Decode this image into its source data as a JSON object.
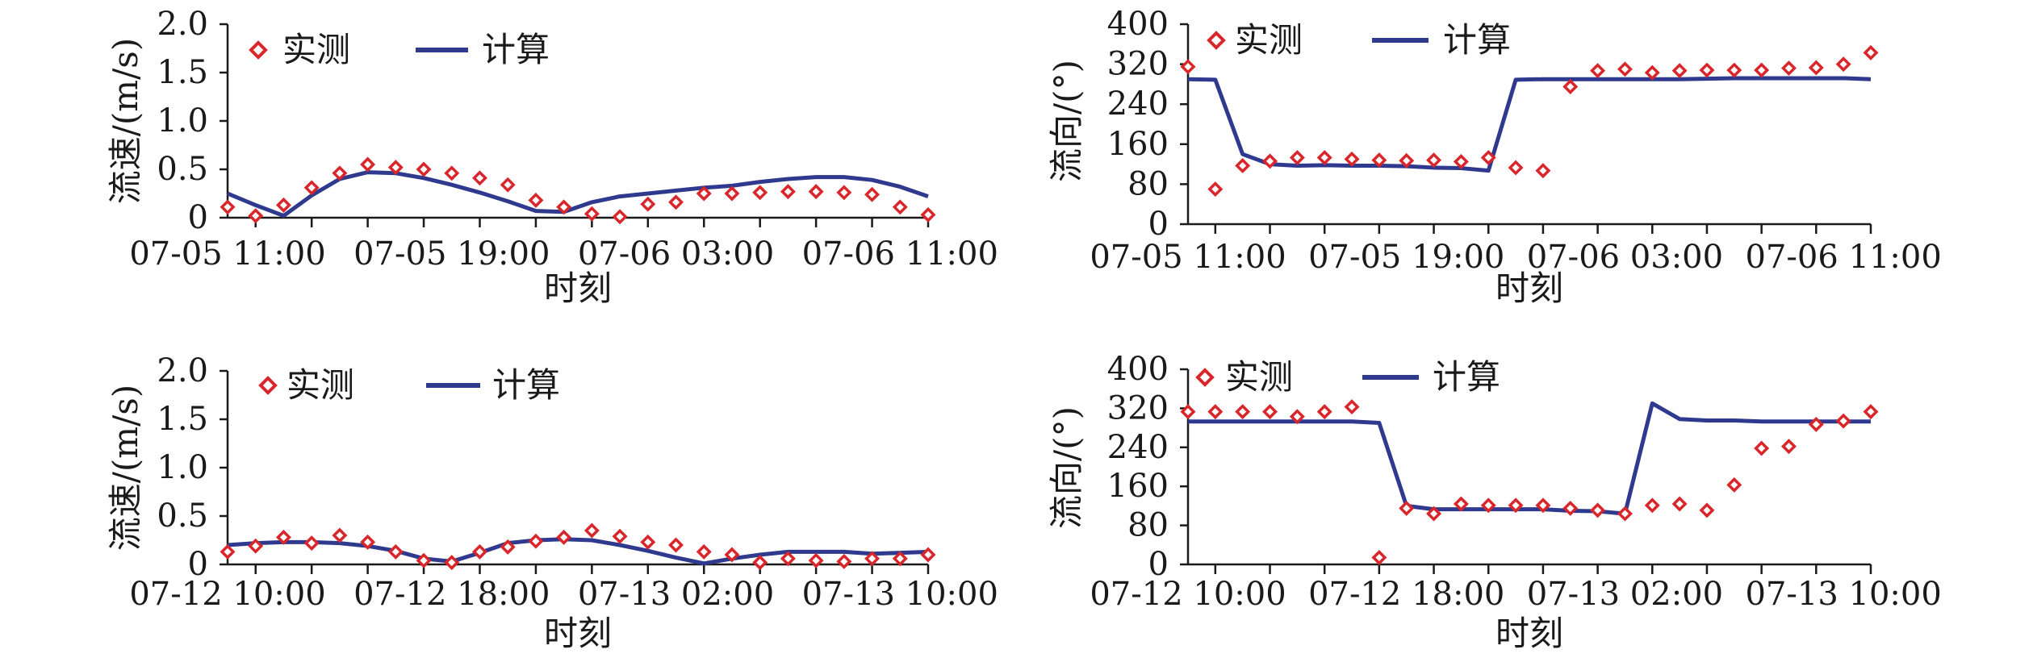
{
  "colors": {
    "measured": "#d9262b",
    "computed": "#2f3a8f",
    "axis": "#1a1a1a"
  },
  "legend": {
    "measured": "实测",
    "computed": "计算"
  },
  "chart_data": [
    {
      "type": "line",
      "ylabel": "流速/(m/s)",
      "xlabel": "时刻",
      "ylim": [
        0,
        2.0
      ],
      "yticks": [
        "2.0",
        "1.5",
        "1.0",
        "0.5",
        "0"
      ],
      "xticks": [
        "07-05 11:00",
        "07-05 19:00",
        "07-06 03:00",
        "07-06 11:00"
      ],
      "series": [
        {
          "name": "实测",
          "kind": "scatter",
          "x": [
            0,
            1,
            2,
            3,
            4,
            5,
            6,
            7,
            8,
            9,
            10,
            11,
            12,
            13,
            14,
            15,
            16,
            17,
            18,
            19,
            20,
            21,
            22,
            23,
            24,
            25
          ],
          "values": [
            0.11,
            0.02,
            0.13,
            0.31,
            0.46,
            0.55,
            0.52,
            0.5,
            0.46,
            0.41,
            0.34,
            0.18,
            0.11,
            0.04,
            0.01,
            0.14,
            0.16,
            0.25,
            0.25,
            0.26,
            0.27,
            0.27,
            0.26,
            0.24,
            0.11,
            0.03
          ]
        },
        {
          "name": "计算",
          "kind": "line",
          "x": [
            0,
            1,
            2,
            3,
            4,
            5,
            6,
            7,
            8,
            9,
            10,
            11,
            12,
            13,
            14,
            15,
            16,
            17,
            18,
            19,
            20,
            21,
            22,
            23,
            24,
            25
          ],
          "values": [
            0.25,
            0.13,
            0.02,
            0.23,
            0.4,
            0.47,
            0.46,
            0.41,
            0.34,
            0.26,
            0.17,
            0.07,
            0.06,
            0.16,
            0.22,
            0.25,
            0.28,
            0.31,
            0.33,
            0.37,
            0.4,
            0.42,
            0.42,
            0.39,
            0.32,
            0.22
          ]
        }
      ]
    },
    {
      "type": "line",
      "ylabel": "流向/(°)",
      "xlabel": "时刻",
      "ylim": [
        0,
        400
      ],
      "yticks": [
        "400",
        "320",
        "240",
        "160",
        "80",
        "0"
      ],
      "xticks": [
        "07-05 11:00",
        "07-05 19:00",
        "07-06 03:00",
        "07-06 11:00"
      ],
      "series": [
        {
          "name": "实测",
          "kind": "scatter",
          "x": [
            0,
            1,
            2,
            3,
            4,
            5,
            6,
            7,
            8,
            9,
            10,
            11,
            12,
            13,
            14,
            15,
            16,
            17,
            18,
            19,
            20,
            21,
            22,
            23,
            24,
            25
          ],
          "values": [
            315,
            70,
            117,
            126,
            133,
            133,
            130,
            128,
            127,
            128,
            125,
            133,
            113,
            107,
            275,
            307,
            310,
            303,
            307,
            308,
            308,
            308,
            312,
            313,
            320,
            343
          ]
        },
        {
          "name": "计算",
          "kind": "line",
          "x": [
            0,
            1,
            2,
            3,
            4,
            5,
            6,
            7,
            8,
            9,
            10,
            11,
            12,
            13,
            14,
            15,
            16,
            17,
            18,
            19,
            20,
            21,
            22,
            23,
            24,
            25
          ],
          "values": [
            290,
            289,
            140,
            120,
            117,
            118,
            117,
            117,
            116,
            113,
            112,
            107,
            289,
            290,
            290,
            290,
            290,
            290,
            290,
            291,
            292,
            292,
            292,
            292,
            292,
            290
          ]
        }
      ]
    },
    {
      "type": "line",
      "ylabel": "流速/(m/s)",
      "xlabel": "时刻",
      "ylim": [
        0,
        2.0
      ],
      "yticks": [
        "2.0",
        "1.5",
        "1.0",
        "0.5",
        "0"
      ],
      "xticks": [
        "07-12 10:00",
        "07-12 18:00",
        "07-13 02:00",
        "07-13 10:00"
      ],
      "series": [
        {
          "name": "实测",
          "kind": "scatter",
          "x": [
            0,
            1,
            2,
            3,
            4,
            5,
            6,
            7,
            8,
            9,
            10,
            11,
            12,
            13,
            14,
            15,
            16,
            17,
            18,
            19,
            20,
            21,
            22,
            23,
            24,
            25
          ],
          "values": [
            0.13,
            0.19,
            0.28,
            0.22,
            0.3,
            0.23,
            0.13,
            0.04,
            0.02,
            0.13,
            0.18,
            0.24,
            0.28,
            0.35,
            0.29,
            0.23,
            0.2,
            0.13,
            0.1,
            0.02,
            0.06,
            0.04,
            0.03,
            0.06,
            0.06,
            0.1
          ]
        },
        {
          "name": "计算",
          "kind": "line",
          "x": [
            0,
            1,
            2,
            3,
            4,
            5,
            6,
            7,
            8,
            9,
            10,
            11,
            12,
            13,
            14,
            15,
            16,
            17,
            18,
            19,
            20,
            21,
            22,
            23,
            24,
            25
          ],
          "values": [
            0.2,
            0.22,
            0.23,
            0.23,
            0.22,
            0.19,
            0.14,
            0.06,
            0.03,
            0.12,
            0.22,
            0.25,
            0.26,
            0.25,
            0.2,
            0.14,
            0.07,
            0.01,
            0.06,
            0.1,
            0.13,
            0.13,
            0.13,
            0.11,
            0.12,
            0.13
          ]
        }
      ]
    },
    {
      "type": "line",
      "ylabel": "流向/(°)",
      "xlabel": "时刻",
      "ylim": [
        0,
        400
      ],
      "yticks": [
        "400",
        "320",
        "240",
        "160",
        "80",
        "0"
      ],
      "xticks": [
        "07-12 10:00",
        "07-12 18:00",
        "07-13 02:00",
        "07-13 10:00"
      ],
      "series": [
        {
          "name": "实测",
          "kind": "scatter",
          "x": [
            0,
            1,
            2,
            3,
            4,
            5,
            6,
            7,
            8,
            9,
            10,
            11,
            12,
            13,
            14,
            15,
            16,
            17,
            18,
            19,
            20,
            21,
            22,
            23,
            24,
            25
          ],
          "values": [
            313,
            313,
            313,
            313,
            303,
            313,
            323,
            14,
            115,
            104,
            124,
            121,
            121,
            121,
            115,
            111,
            104,
            121,
            124,
            111,
            163,
            238,
            242,
            287,
            294,
            313
          ]
        },
        {
          "name": "计算",
          "kind": "line",
          "x": [
            0,
            1,
            2,
            3,
            4,
            5,
            6,
            7,
            8,
            9,
            10,
            11,
            12,
            13,
            14,
            15,
            16,
            17,
            18,
            19,
            20,
            21,
            22,
            23,
            24,
            25
          ],
          "values": [
            293,
            293,
            293,
            293,
            293,
            293,
            293,
            290,
            120,
            113,
            113,
            113,
            113,
            113,
            110,
            109,
            104,
            330,
            298,
            295,
            295,
            293,
            293,
            293,
            293,
            293
          ]
        }
      ]
    }
  ]
}
